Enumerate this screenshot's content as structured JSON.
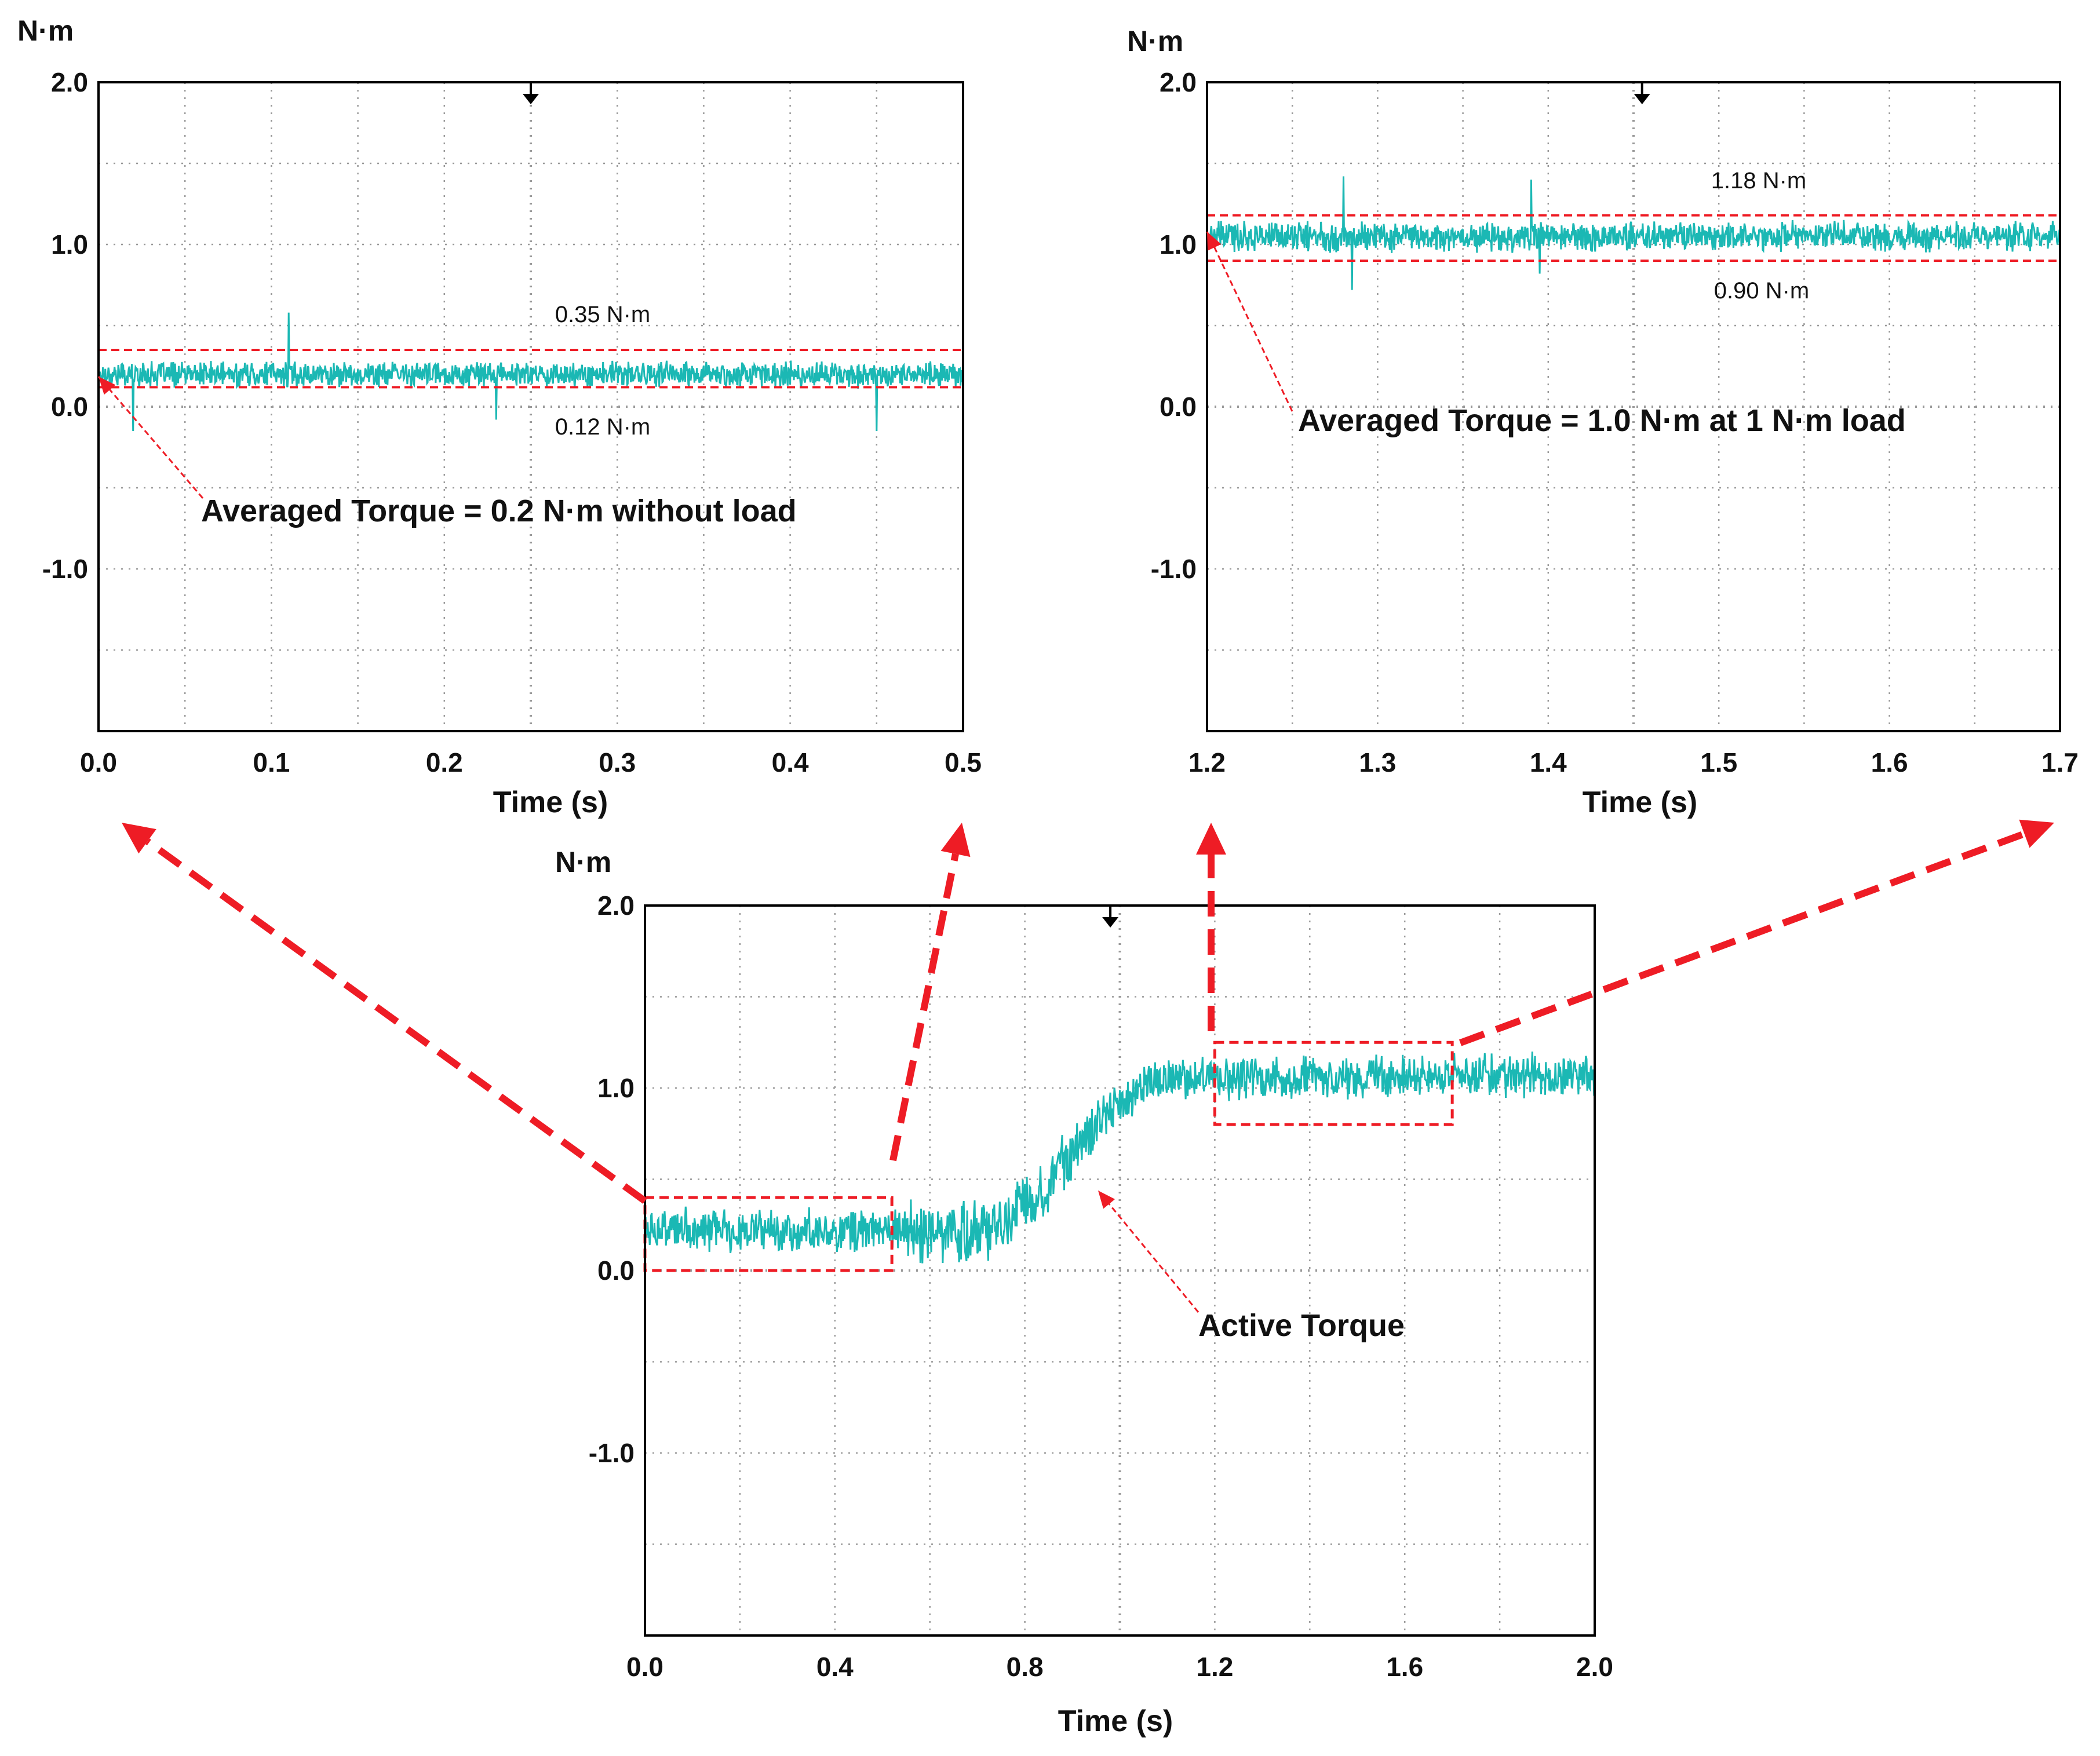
{
  "colors": {
    "trace": "#1bb8b4",
    "annotation": "#ee1c25",
    "axis": "#000000",
    "grid": "#9a9a9a"
  },
  "chart_data": [
    {
      "type": "line",
      "title": "",
      "ylabel": "N·m",
      "xlabel": "Time (s)",
      "xlim": [
        0.0,
        0.5
      ],
      "ylim": [
        -2.0,
        2.0
      ],
      "x_ticks": [
        "0.0",
        "0.1",
        "0.2",
        "0.3",
        "0.4",
        "0.5"
      ],
      "y_ticks": [
        "2.0",
        "1.0",
        "0.0",
        "-1.0"
      ],
      "grid": true,
      "trigger_marker_x": 0.25,
      "series": [
        {
          "mean": 0.2,
          "noise": 0.06,
          "spikes": [
            [
              0.11,
              0.58
            ],
            [
              0.02,
              -0.15
            ],
            [
              0.23,
              -0.08
            ],
            [
              0.45,
              -0.15
            ]
          ]
        }
      ],
      "upper_line": {
        "value": 0.35,
        "label": "0.35 N·m"
      },
      "lower_line": {
        "value": 0.12,
        "label": "0.12 N·m"
      },
      "annotation": "Averaged Torque = 0.2 N·m without load"
    },
    {
      "type": "line",
      "title": "",
      "ylabel": "N·m",
      "xlabel": "Time (s)",
      "xlim": [
        1.2,
        1.7
      ],
      "ylim": [
        -2.0,
        2.0
      ],
      "x_ticks": [
        "1.2",
        "1.3",
        "1.4",
        "1.5",
        "1.6",
        "1.7"
      ],
      "y_ticks": [
        "2.0",
        "1.0",
        "0.0",
        "-1.0"
      ],
      "grid": true,
      "trigger_marker_x": 1.455,
      "series": [
        {
          "mean": 1.05,
          "noise": 0.07,
          "spikes": [
            [
              1.28,
              1.42
            ],
            [
              1.285,
              0.72
            ],
            [
              1.39,
              1.4
            ],
            [
              1.395,
              0.82
            ]
          ]
        }
      ],
      "upper_line": {
        "value": 1.18,
        "label": "1.18 N·m"
      },
      "lower_line": {
        "value": 0.9,
        "label": "0.90 N·m"
      },
      "annotation": "Averaged Torque = 1.0 N·m at 1 N·m load"
    },
    {
      "type": "line",
      "title": "",
      "ylabel": "N·m",
      "xlabel": "Time (s)",
      "xlim": [
        0.0,
        2.0
      ],
      "ylim": [
        -2.0,
        2.0
      ],
      "x_ticks": [
        "0.0",
        "0.4",
        "0.8",
        "1.2",
        "1.6",
        "2.0"
      ],
      "y_ticks": [
        "2.0",
        "1.0",
        "0.0",
        "-1.0"
      ],
      "grid": true,
      "trigger_marker_x": 0.98,
      "series": [
        {
          "name": "Active Torque",
          "profile": [
            [
              0.0,
              0.22
            ],
            [
              0.52,
              0.22
            ],
            [
              0.6,
              0.2
            ],
            [
              0.72,
              0.22
            ],
            [
              0.82,
              0.4
            ],
            [
              0.94,
              0.8
            ],
            [
              1.08,
              1.05
            ],
            [
              2.0,
              1.07
            ]
          ]
        }
      ],
      "zoom_boxes": [
        {
          "x": [
            0.0,
            0.52
          ],
          "y": [
            0.0,
            0.4
          ]
        },
        {
          "x": [
            1.2,
            1.7
          ],
          "y": [
            0.8,
            1.25
          ]
        }
      ],
      "annotation": "Active Torque"
    }
  ]
}
